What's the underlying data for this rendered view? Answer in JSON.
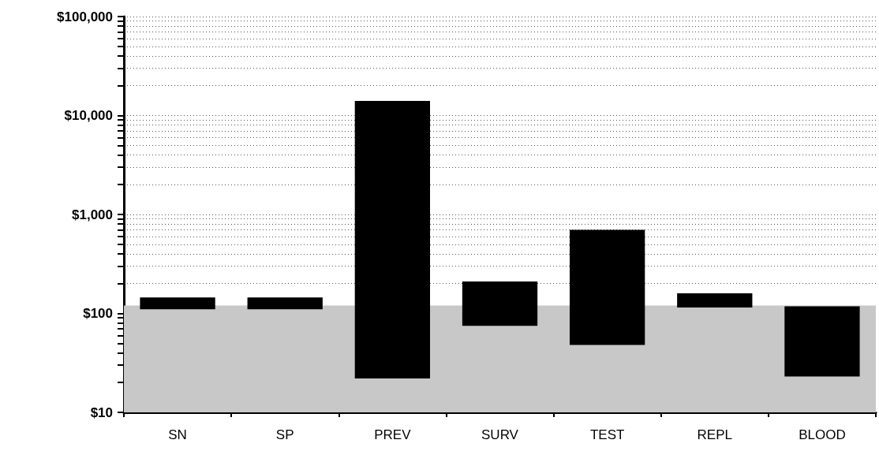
{
  "chart_data": {
    "type": "bar",
    "categories": [
      "SN",
      "SP",
      "PREV",
      "SURV",
      "TEST",
      "REPL",
      "BLOOD"
    ],
    "base": [
      110,
      110,
      22,
      75,
      48,
      115,
      23
    ],
    "values": [
      35,
      35,
      14000,
      135,
      650,
      45,
      95
    ],
    "color": "#000000",
    "log": "y",
    "ylim": [
      10,
      100000
    ],
    "yticks": [
      {
        "value": 10,
        "label": "$10"
      },
      {
        "value": 20,
        "label": null
      },
      {
        "value": 30,
        "label": null
      },
      {
        "value": 40,
        "label": null
      },
      {
        "value": 50,
        "label": null
      },
      {
        "value": 60,
        "label": null
      },
      {
        "value": 70,
        "label": null
      },
      {
        "value": 80,
        "label": null
      },
      {
        "value": 90,
        "label": null
      },
      {
        "value": 100,
        "label": "$100"
      },
      {
        "value": 200,
        "label": null
      },
      {
        "value": 300,
        "label": null
      },
      {
        "value": 400,
        "label": null
      },
      {
        "value": 500,
        "label": null
      },
      {
        "value": 600,
        "label": null
      },
      {
        "value": 700,
        "label": null
      },
      {
        "value": 800,
        "label": null
      },
      {
        "value": 900,
        "label": null
      },
      {
        "value": 1000,
        "label": "$1,000"
      },
      {
        "value": 2000,
        "label": null
      },
      {
        "value": 3000,
        "label": null
      },
      {
        "value": 4000,
        "label": null
      },
      {
        "value": 5000,
        "label": null
      },
      {
        "value": 6000,
        "label": null
      },
      {
        "value": 7000,
        "label": null
      },
      {
        "value": 8000,
        "label": null
      },
      {
        "value": 9000,
        "label": null
      },
      {
        "value": 10000,
        "label": "$10,000"
      },
      {
        "value": 20000,
        "label": null
      },
      {
        "value": 30000,
        "label": null
      },
      {
        "value": 40000,
        "label": null
      },
      {
        "value": 50000,
        "label": null
      },
      {
        "value": 60000,
        "label": null
      },
      {
        "value": 70000,
        "label": null
      },
      {
        "value": 80000,
        "label": null
      },
      {
        "value": 90000,
        "label": null
      },
      {
        "value": 100000,
        "label": "$100,000"
      }
    ],
    "grid": "y",
    "bands": [
      {
        "axis": "y",
        "from": 10,
        "to": 120,
        "color": "#c8c8c8"
      }
    ]
  }
}
